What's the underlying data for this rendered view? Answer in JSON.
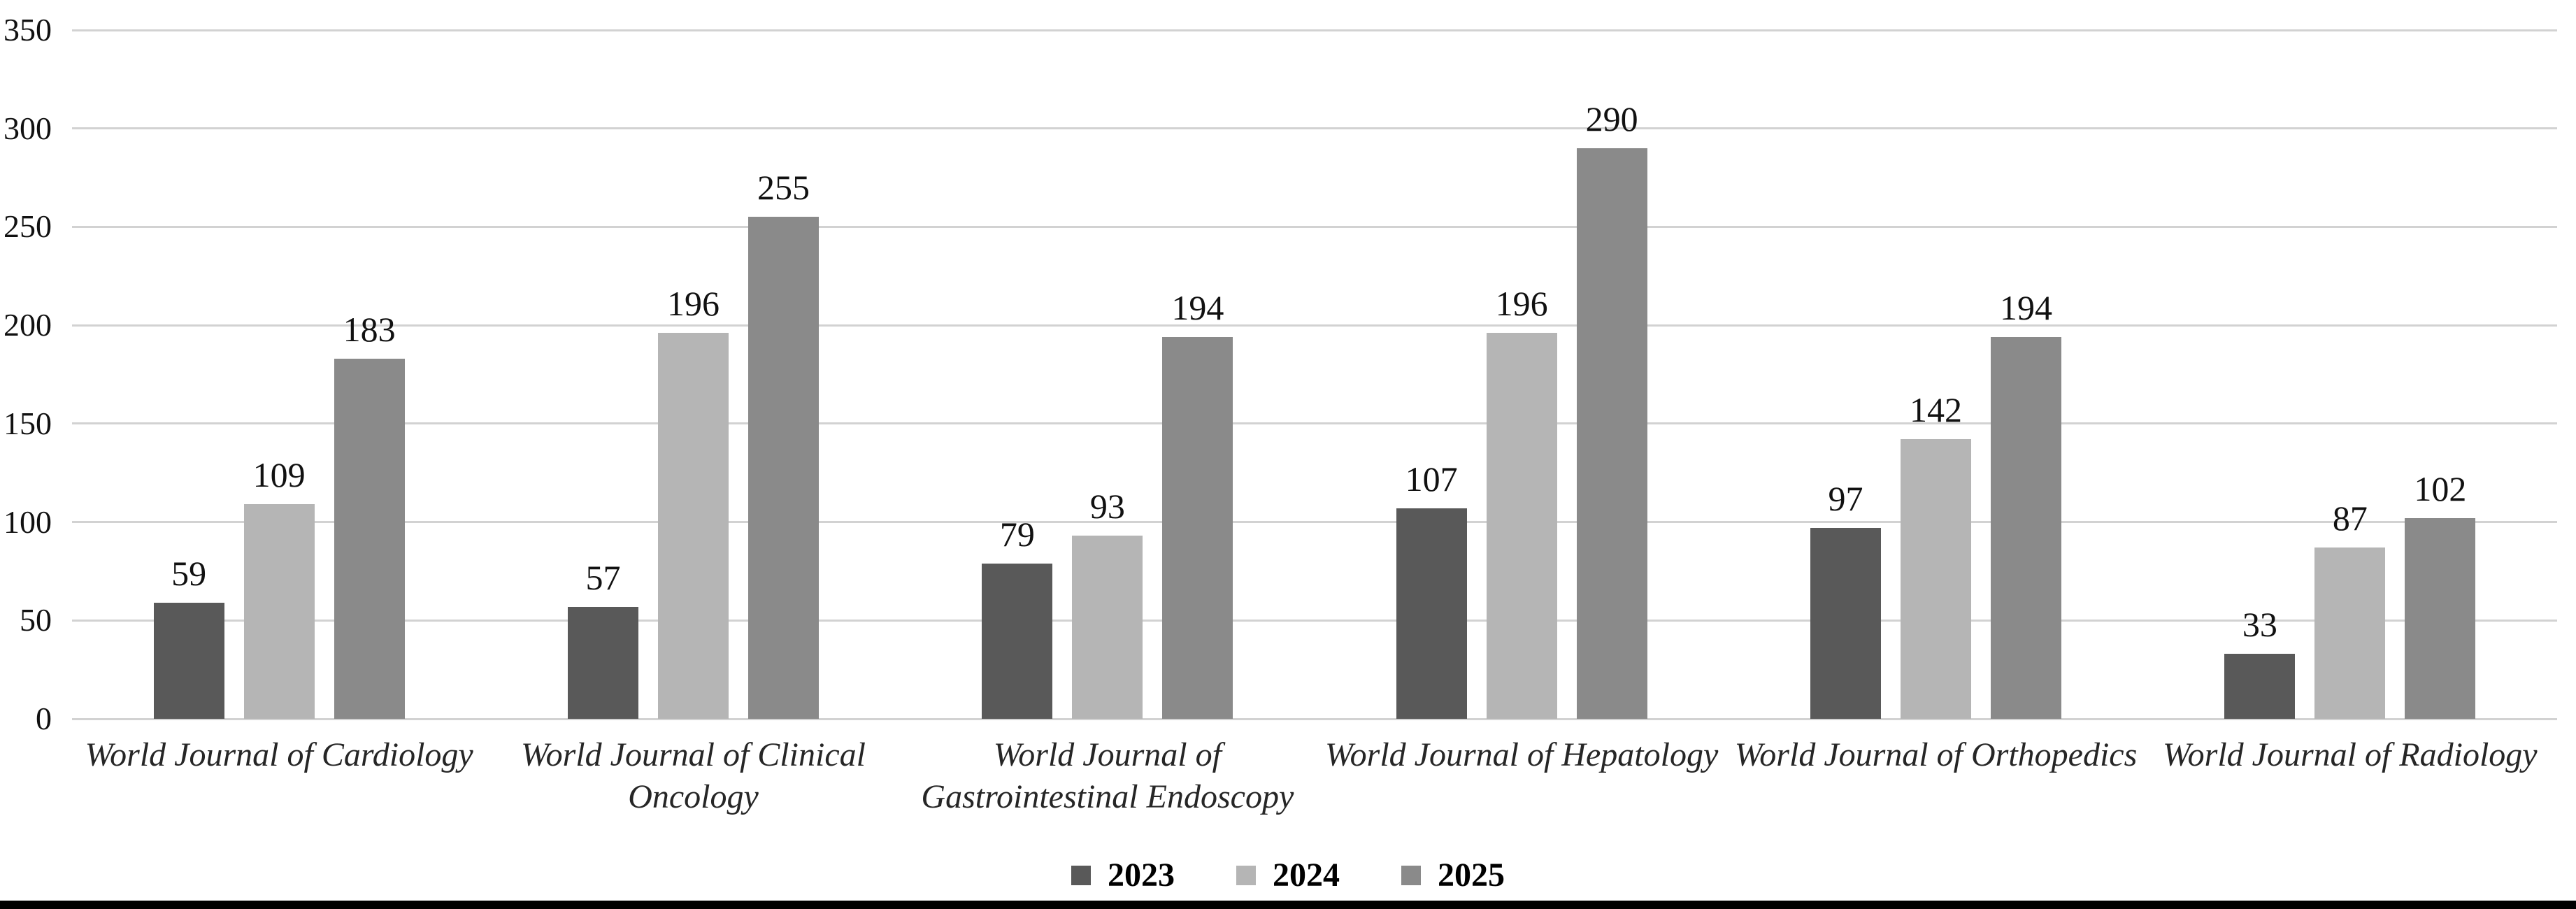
{
  "chart_data": {
    "type": "bar",
    "title": "",
    "categories": [
      {
        "label": "World Journal of Cardiology",
        "lines": [
          "World Journal of Cardiology"
        ]
      },
      {
        "label": "World Journal of Clinical Oncology",
        "lines": [
          "World Journal of Clinical",
          "Oncology"
        ]
      },
      {
        "label": "World Journal of Gastrointestinal Endoscopy",
        "lines": [
          "World Journal of",
          "Gastrointestinal Endoscopy"
        ]
      },
      {
        "label": "World Journal of Hepatology",
        "lines": [
          "World Journal of Hepatology"
        ]
      },
      {
        "label": "World Journal of Orthopedics",
        "lines": [
          "World Journal of Orthopedics"
        ]
      },
      {
        "label": "World Journal of Radiology",
        "lines": [
          "World Journal of Radiology"
        ]
      }
    ],
    "series": [
      {
        "name": "2023",
        "color": "#595959",
        "values": [
          59,
          57,
          79,
          107,
          97,
          33
        ]
      },
      {
        "name": "2024",
        "color": "#b5b5b5",
        "values": [
          109,
          196,
          93,
          196,
          142,
          87
        ]
      },
      {
        "name": "2025",
        "color": "#8a8a8a",
        "values": [
          183,
          255,
          194,
          290,
          194,
          102
        ]
      }
    ],
    "y_ticks": [
      0,
      50,
      100,
      150,
      200,
      250,
      300,
      350
    ],
    "ylim": [
      0,
      350
    ],
    "xlabel": "",
    "ylabel": "",
    "grid": "horizontal-on",
    "gridline_color": "#d2d2d2",
    "value_labels_shown": true,
    "legend_position": "bottom-center",
    "bottom_border_color": "#000000"
  }
}
